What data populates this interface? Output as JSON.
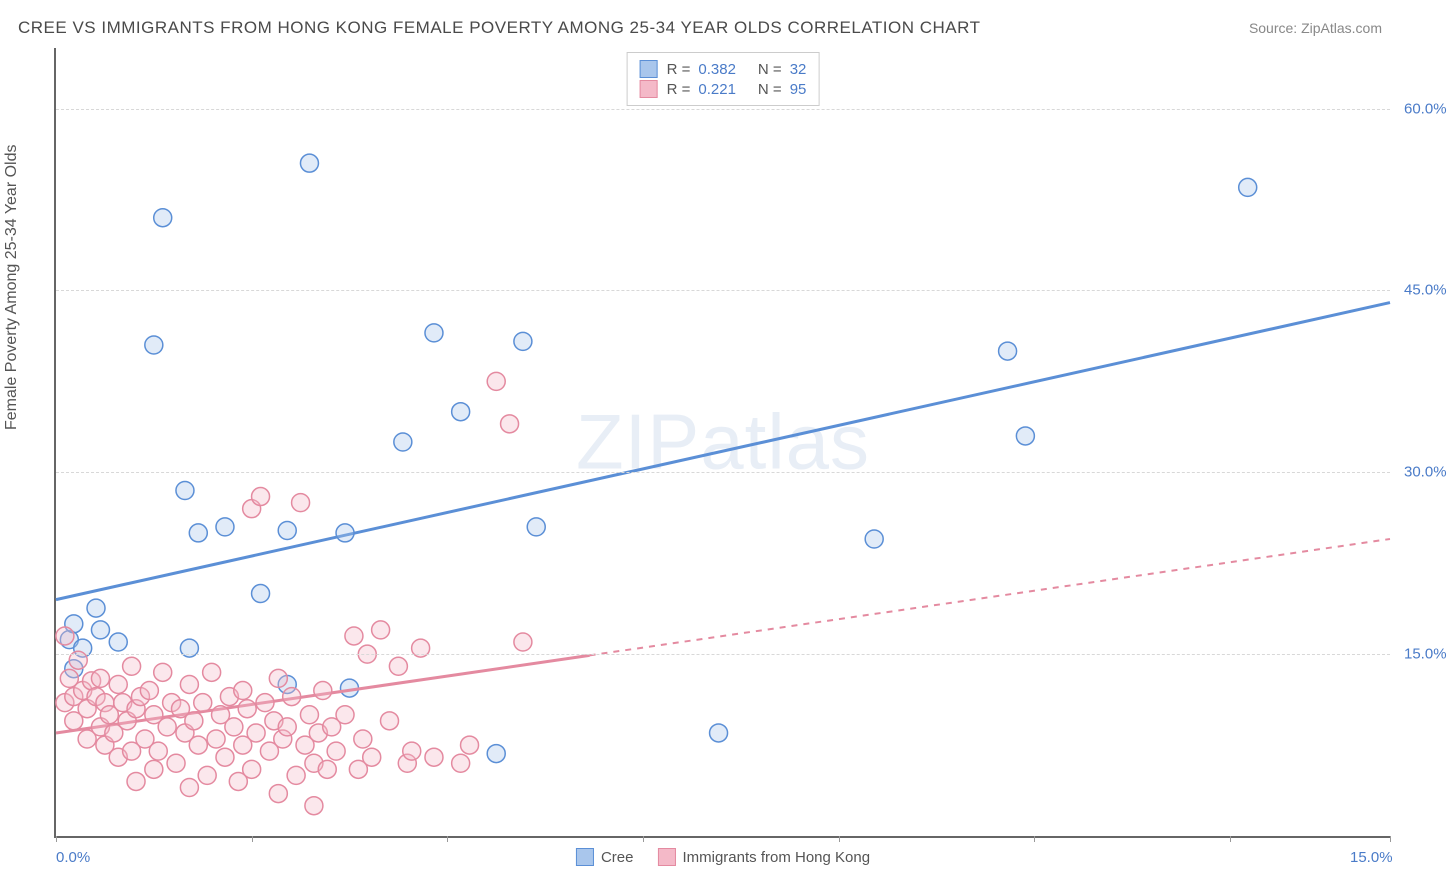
{
  "title": "CREE VS IMMIGRANTS FROM HONG KONG FEMALE POVERTY AMONG 25-34 YEAR OLDS CORRELATION CHART",
  "source": "Source: ZipAtlas.com",
  "ylabel": "Female Poverty Among 25-34 Year Olds",
  "watermark": "ZIPatlas",
  "chart": {
    "type": "scatter",
    "background_color": "#ffffff",
    "grid_color": "#d8d8d8",
    "axis_color": "#666666",
    "tick_label_color": "#4a7bc8",
    "label_fontsize": 16,
    "tick_fontsize": 15,
    "xlim": [
      0,
      15
    ],
    "ylim": [
      0,
      65
    ],
    "yticks": [
      15,
      30,
      45,
      60
    ],
    "ytick_labels": [
      "15.0%",
      "30.0%",
      "45.0%",
      "60.0%"
    ],
    "xtick_positions": [
      0,
      2.2,
      4.4,
      6.6,
      8.8,
      11.0,
      13.2,
      15.0
    ],
    "xtick_labels": {
      "0": "0.0%",
      "15": "15.0%"
    },
    "marker_radius": 9,
    "marker_stroke_width": 1.5,
    "marker_fill_opacity": 0.35,
    "line_width": 3,
    "series": [
      {
        "name": "Cree",
        "color_stroke": "#5b8fd6",
        "color_fill": "#a9c6ec",
        "r": 0.382,
        "n": 32,
        "trend": {
          "y_at_xmin": 19.5,
          "y_at_xmax": 44.0,
          "solid_until_x": 15.0,
          "dash": "0"
        },
        "points": [
          [
            0.15,
            16.2
          ],
          [
            0.2,
            13.8
          ],
          [
            0.3,
            15.5
          ],
          [
            0.2,
            17.5
          ],
          [
            0.45,
            18.8
          ],
          [
            0.5,
            17.0
          ],
          [
            0.7,
            16.0
          ],
          [
            1.2,
            51.0
          ],
          [
            1.1,
            40.5
          ],
          [
            1.6,
            25.0
          ],
          [
            1.45,
            28.5
          ],
          [
            1.5,
            15.5
          ],
          [
            1.9,
            25.5
          ],
          [
            2.3,
            20.0
          ],
          [
            2.6,
            12.5
          ],
          [
            2.85,
            55.5
          ],
          [
            2.6,
            25.2
          ],
          [
            3.25,
            25.0
          ],
          [
            3.3,
            12.2
          ],
          [
            3.9,
            32.5
          ],
          [
            4.25,
            41.5
          ],
          [
            4.55,
            35.0
          ],
          [
            4.95,
            6.8
          ],
          [
            5.4,
            25.5
          ],
          [
            5.25,
            40.8
          ],
          [
            7.45,
            8.5
          ],
          [
            9.2,
            24.5
          ],
          [
            10.7,
            40.0
          ],
          [
            10.9,
            33.0
          ],
          [
            13.4,
            53.5
          ]
        ]
      },
      {
        "name": "Immigrants from Hong Kong",
        "color_stroke": "#e48aa0",
        "color_fill": "#f4b9c8",
        "r": 0.221,
        "n": 95,
        "trend": {
          "y_at_xmin": 8.5,
          "y_at_xmax": 24.5,
          "solid_until_x": 6.0,
          "dash": "6,6"
        },
        "points": [
          [
            0.1,
            16.5
          ],
          [
            0.1,
            11.0
          ],
          [
            0.15,
            13.0
          ],
          [
            0.2,
            11.5
          ],
          [
            0.25,
            14.5
          ],
          [
            0.2,
            9.5
          ],
          [
            0.3,
            12.0
          ],
          [
            0.35,
            10.5
          ],
          [
            0.35,
            8.0
          ],
          [
            0.4,
            12.8
          ],
          [
            0.45,
            11.5
          ],
          [
            0.5,
            9.0
          ],
          [
            0.5,
            13.0
          ],
          [
            0.55,
            7.5
          ],
          [
            0.55,
            11.0
          ],
          [
            0.6,
            10.0
          ],
          [
            0.65,
            8.5
          ],
          [
            0.7,
            12.5
          ],
          [
            0.7,
            6.5
          ],
          [
            0.75,
            11.0
          ],
          [
            0.8,
            9.5
          ],
          [
            0.85,
            14.0
          ],
          [
            0.85,
            7.0
          ],
          [
            0.9,
            10.5
          ],
          [
            0.9,
            4.5
          ],
          [
            0.95,
            11.5
          ],
          [
            1.0,
            8.0
          ],
          [
            1.05,
            12.0
          ],
          [
            1.1,
            5.5
          ],
          [
            1.1,
            10.0
          ],
          [
            1.15,
            7.0
          ],
          [
            1.2,
            13.5
          ],
          [
            1.25,
            9.0
          ],
          [
            1.3,
            11.0
          ],
          [
            1.35,
            6.0
          ],
          [
            1.4,
            10.5
          ],
          [
            1.45,
            8.5
          ],
          [
            1.5,
            12.5
          ],
          [
            1.5,
            4.0
          ],
          [
            1.55,
            9.5
          ],
          [
            1.6,
            7.5
          ],
          [
            1.65,
            11.0
          ],
          [
            1.7,
            5.0
          ],
          [
            1.75,
            13.5
          ],
          [
            1.8,
            8.0
          ],
          [
            1.85,
            10.0
          ],
          [
            1.9,
            6.5
          ],
          [
            1.95,
            11.5
          ],
          [
            2.0,
            9.0
          ],
          [
            2.05,
            4.5
          ],
          [
            2.1,
            12.0
          ],
          [
            2.1,
            7.5
          ],
          [
            2.15,
            10.5
          ],
          [
            2.2,
            27.0
          ],
          [
            2.2,
            5.5
          ],
          [
            2.25,
            8.5
          ],
          [
            2.3,
            28.0
          ],
          [
            2.35,
            11.0
          ],
          [
            2.4,
            7.0
          ],
          [
            2.45,
            9.5
          ],
          [
            2.5,
            13.0
          ],
          [
            2.5,
            3.5
          ],
          [
            2.55,
            8.0
          ],
          [
            2.6,
            9.0
          ],
          [
            2.65,
            11.5
          ],
          [
            2.7,
            5.0
          ],
          [
            2.75,
            27.5
          ],
          [
            2.8,
            7.5
          ],
          [
            2.85,
            10.0
          ],
          [
            2.9,
            6.0
          ],
          [
            2.9,
            2.5
          ],
          [
            2.95,
            8.5
          ],
          [
            3.0,
            12.0
          ],
          [
            3.05,
            5.5
          ],
          [
            3.1,
            9.0
          ],
          [
            3.15,
            7.0
          ],
          [
            3.25,
            10.0
          ],
          [
            3.35,
            16.5
          ],
          [
            3.4,
            5.5
          ],
          [
            3.45,
            8.0
          ],
          [
            3.5,
            15.0
          ],
          [
            3.55,
            6.5
          ],
          [
            3.65,
            17.0
          ],
          [
            3.75,
            9.5
          ],
          [
            3.85,
            14.0
          ],
          [
            3.95,
            6.0
          ],
          [
            4.0,
            7.0
          ],
          [
            4.1,
            15.5
          ],
          [
            4.25,
            6.5
          ],
          [
            4.55,
            6.0
          ],
          [
            4.65,
            7.5
          ],
          [
            4.95,
            37.5
          ],
          [
            5.1,
            34.0
          ],
          [
            5.25,
            16.0
          ]
        ]
      }
    ]
  },
  "legend_top": {
    "r_prefix": "R =",
    "n_prefix": "N ="
  },
  "legend_bottom": {
    "items": [
      "Cree",
      "Immigrants from Hong Kong"
    ]
  }
}
